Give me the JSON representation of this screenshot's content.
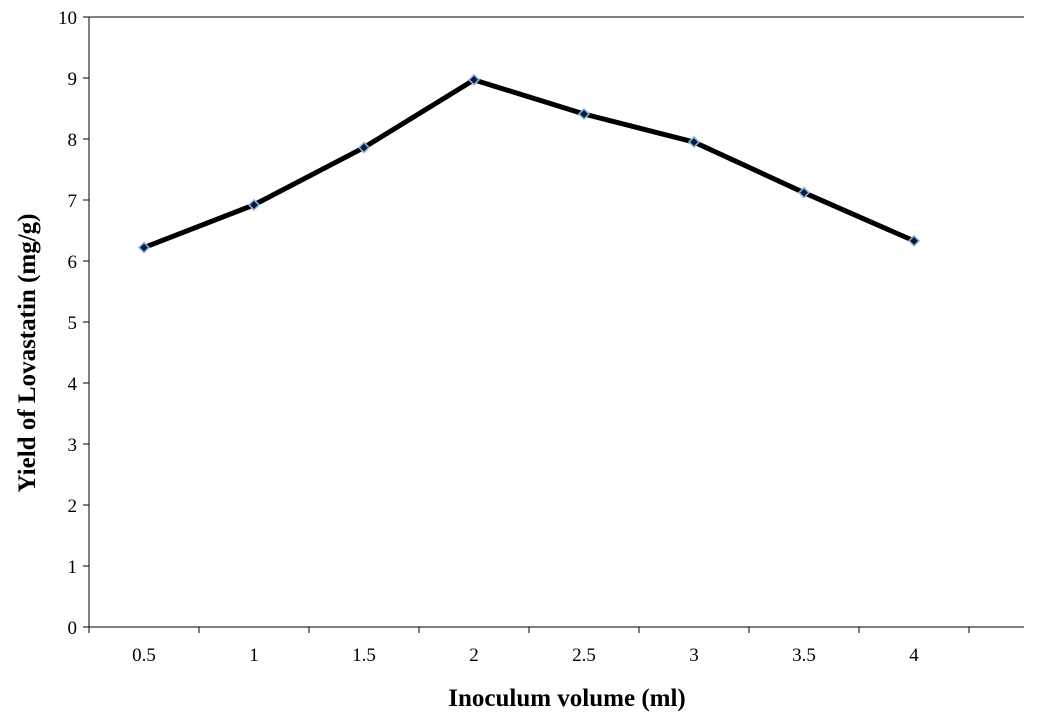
{
  "chart_data": {
    "type": "line",
    "title": "",
    "xlabel": "Inoculum volume (ml)",
    "ylabel": "Yield of Lovastatin (mg/g)",
    "categories": [
      "0.5",
      "1",
      "1.5",
      "2",
      "2.5",
      "3",
      "3.5",
      "4"
    ],
    "series": [
      {
        "values": [
          6.22,
          6.92,
          7.86,
          8.97,
          8.41,
          7.95,
          7.12,
          6.33
        ]
      }
    ],
    "ylim": [
      0,
      10
    ],
    "yticks": [
      "0",
      "1",
      "2",
      "3",
      "4",
      "5",
      "6",
      "7",
      "8",
      "9",
      "10"
    ],
    "grid": false,
    "legend": "none",
    "line_color": "#000000",
    "marker_fill": "#0a1a3a",
    "marker_edge": "#8fb4dd"
  }
}
